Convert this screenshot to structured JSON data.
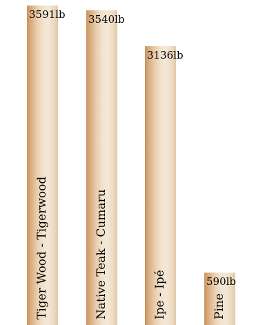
{
  "chart_data": {
    "type": "bar",
    "orientation": "vertical",
    "categories": [
      "Tiger Wood - Tigerwood",
      "Native Teak - Cumaru",
      "Ipe - Ipé",
      "Pine"
    ],
    "values": [
      3591,
      3540,
      3136,
      590
    ],
    "value_labels": [
      "3591lb",
      "3540lb",
      "3136lb",
      "590lb"
    ],
    "unit": "lb",
    "title": "",
    "xlabel": "",
    "ylabel": "",
    "ylim": [
      0,
      3591
    ],
    "grid": false,
    "legend": "none",
    "bar_color": "#e8cfb0"
  }
}
